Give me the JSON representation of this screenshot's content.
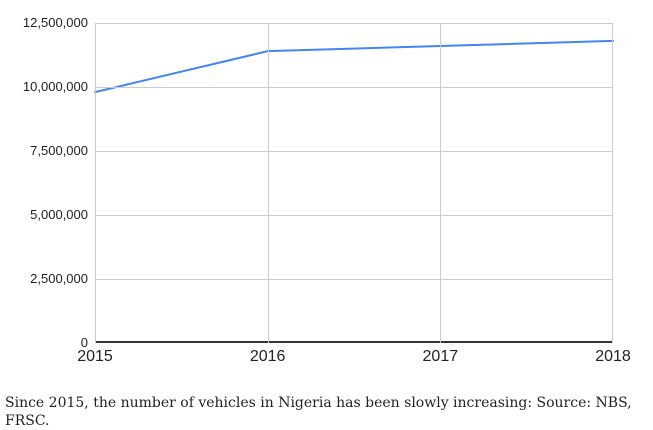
{
  "chart_data": {
    "type": "line",
    "title": "",
    "xlabel": "",
    "ylabel": "",
    "x": [
      2015,
      2016,
      2017,
      2018
    ],
    "x_labels": [
      "2015",
      "2016",
      "2017",
      "2018"
    ],
    "series": [
      {
        "values": [
          9800000,
          11400000,
          11600000,
          11800000
        ]
      }
    ],
    "ylim": [
      0,
      12500000
    ],
    "yticks": [
      0,
      2500000,
      5000000,
      7500000,
      10000000,
      12500000
    ],
    "ytick_labels": [
      "0",
      "2,500,000",
      "5,000,000",
      "7,500,000",
      "10,000,000",
      "12,500,000"
    ],
    "grid": true,
    "legend": "none"
  },
  "caption": {
    "text": "Since 2015, the number of vehicles in Nigeria has been slowly increasing: Source: NBS, FRSC."
  },
  "colors": {
    "line": "#4285f4",
    "gridline": "#cccccc",
    "baseline": "#333333",
    "axis_label": "#222222",
    "caption_text": "#222222",
    "background": "#ffffff"
  }
}
